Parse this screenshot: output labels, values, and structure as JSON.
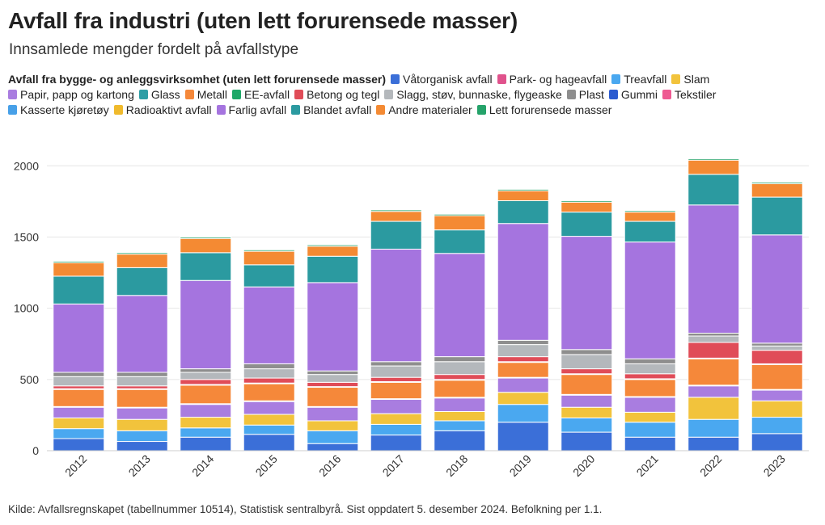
{
  "title": "Avfall fra industri (uten lett forurensede masser)",
  "subtitle": "Innsamlede mengder fordelt på avfallstype",
  "legend_title": "Avfall fra bygge- og anleggsvirksomhet (uten lett forurensede masser)",
  "source": "Kilde: Avfallsregnskapet (tabellnummer 10514), Statistisk sentralbyrå. Sist oppdatert 5. desember 2024. Befolkning per 1.1.",
  "chart_data": {
    "type": "bar",
    "stacked": true,
    "categories": [
      "2012",
      "2013",
      "2014",
      "2015",
      "2016",
      "2017",
      "2018",
      "2019",
      "2020",
      "2021",
      "2022",
      "2023"
    ],
    "ylim": [
      0,
      2200
    ],
    "yticks": [
      0,
      500,
      1000,
      1500,
      2000
    ],
    "grid": true,
    "legend_position": "top",
    "series": [
      {
        "name": "Våtorganisk avfall",
        "color": "#3b6fd8",
        "values": [
          85,
          65,
          95,
          115,
          50,
          110,
          140,
          200,
          130,
          95,
          95,
          120
        ]
      },
      {
        "name": "Park- og hageavfall",
        "color": "#e0528c",
        "values": [
          0,
          0,
          0,
          0,
          0,
          0,
          0,
          0,
          0,
          0,
          0,
          0
        ]
      },
      {
        "name": "Treavfall",
        "color": "#4aa8f0",
        "values": [
          70,
          75,
          65,
          65,
          90,
          75,
          70,
          125,
          100,
          105,
          125,
          115
        ]
      },
      {
        "name": "Slam",
        "color": "#f2c33c",
        "values": [
          75,
          80,
          75,
          75,
          70,
          75,
          65,
          85,
          75,
          70,
          155,
          115
        ]
      },
      {
        "name": "Papir, papp og kartong",
        "color": "#a97de0",
        "values": [
          75,
          80,
          90,
          90,
          95,
          100,
          95,
          100,
          85,
          105,
          80,
          75
        ]
      },
      {
        "name": "Glass",
        "color": "#2e9ea6",
        "values": [
          5,
          5,
          5,
          5,
          5,
          5,
          5,
          5,
          5,
          5,
          5,
          5
        ]
      },
      {
        "name": "Metall",
        "color": "#f5883a",
        "values": [
          120,
          125,
          130,
          120,
          135,
          115,
          120,
          105,
          140,
          120,
          185,
          175
        ]
      },
      {
        "name": "EE-avfall",
        "color": "#1ea868",
        "values": [
          5,
          5,
          5,
          5,
          5,
          5,
          5,
          5,
          5,
          5,
          5,
          5
        ]
      },
      {
        "name": "Betong og tegl",
        "color": "#e04c58",
        "values": [
          20,
          20,
          35,
          35,
          30,
          30,
          35,
          35,
          35,
          35,
          110,
          95
        ]
      },
      {
        "name": "Slagg, støv, bunnaske, flygeaske",
        "color": "#b4b8bc",
        "values": [
          65,
          65,
          50,
          65,
          55,
          80,
          90,
          85,
          100,
          70,
          45,
          30
        ]
      },
      {
        "name": "Plast",
        "color": "#8e8e8e",
        "values": [
          30,
          30,
          25,
          35,
          25,
          30,
          35,
          30,
          35,
          35,
          20,
          20
        ]
      },
      {
        "name": "Gummi",
        "color": "#2b5bd0",
        "values": [
          0,
          0,
          0,
          0,
          0,
          0,
          0,
          0,
          0,
          0,
          0,
          0
        ]
      },
      {
        "name": "Tekstiler",
        "color": "#ee5a92",
        "values": [
          0,
          0,
          0,
          0,
          0,
          0,
          0,
          0,
          0,
          0,
          0,
          0
        ]
      },
      {
        "name": "Kasserte kjøretøy",
        "color": "#47a0e8",
        "values": [
          0,
          0,
          0,
          0,
          0,
          0,
          0,
          0,
          0,
          0,
          0,
          0
        ]
      },
      {
        "name": "Radioaktivt avfall",
        "color": "#f0ba2c",
        "values": [
          0,
          0,
          0,
          0,
          0,
          0,
          0,
          0,
          0,
          0,
          0,
          0
        ]
      },
      {
        "name": "Farlig avfall",
        "color": "#a574df",
        "values": [
          480,
          540,
          620,
          540,
          620,
          790,
          725,
          820,
          795,
          820,
          900,
          760
        ]
      },
      {
        "name": "Blandet avfall",
        "color": "#2b9aa0",
        "values": [
          195,
          195,
          195,
          155,
          185,
          195,
          165,
          160,
          170,
          145,
          215,
          265
        ]
      },
      {
        "name": "Andre materialer",
        "color": "#f48a33",
        "values": [
          95,
          95,
          100,
          95,
          70,
          70,
          100,
          70,
          70,
          65,
          100,
          95
        ]
      },
      {
        "name": "Lett forurensede masser",
        "color": "#25a36a",
        "values": [
          10,
          10,
          10,
          10,
          10,
          10,
          10,
          10,
          10,
          10,
          10,
          10
        ]
      }
    ]
  }
}
